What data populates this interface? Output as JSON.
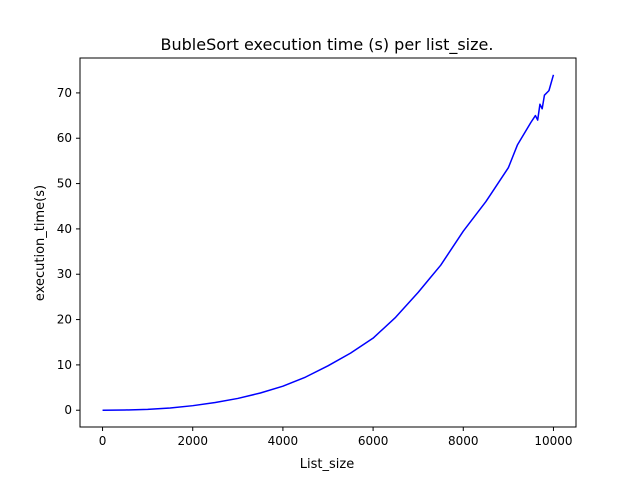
{
  "chart_data": {
    "type": "line",
    "title": "BubleSort execution time (s) per list_size.",
    "xlabel": "List_size",
    "ylabel": "execution_time(s)",
    "xlim": [
      -500,
      10500
    ],
    "ylim": [
      -3.7,
      77.7
    ],
    "xticks": [
      0,
      2000,
      4000,
      6000,
      8000,
      10000
    ],
    "yticks": [
      0,
      10,
      20,
      30,
      40,
      50,
      60,
      70
    ],
    "grid": false,
    "legend": "none",
    "series": [
      {
        "color": "#0000ff",
        "x": [
          0,
          500,
          1000,
          1500,
          2000,
          2500,
          3000,
          3500,
          4000,
          4500,
          5000,
          5500,
          6000,
          6500,
          7000,
          7250,
          7500,
          8000,
          8500,
          8600,
          9000,
          9100,
          9200,
          9500,
          9600,
          9650,
          9700,
          9750,
          9800,
          9900,
          10000
        ],
        "y": [
          0.0,
          0.05,
          0.2,
          0.5,
          1.0,
          1.7,
          2.6,
          3.8,
          5.3,
          7.3,
          9.8,
          12.6,
          15.9,
          20.5,
          26.0,
          29.0,
          32.0,
          39.5,
          46.0,
          47.5,
          53.5,
          56.0,
          58.5,
          63.5,
          65.0,
          64.0,
          67.5,
          66.5,
          69.5,
          70.5,
          74.0
        ]
      }
    ]
  }
}
